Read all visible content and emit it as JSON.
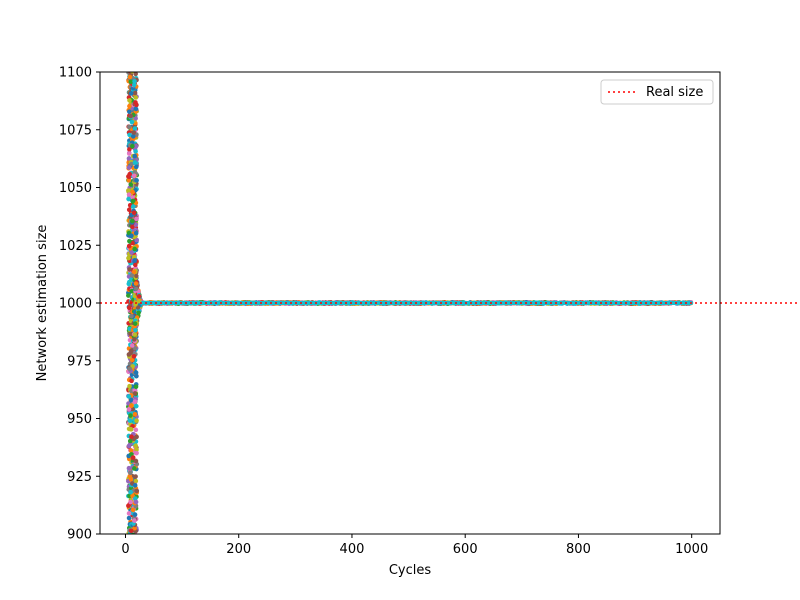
{
  "chart_data": {
    "type": "scatter",
    "title": "",
    "xlabel": "Cycles",
    "ylabel": "Network estimation size",
    "xlim": [
      -45,
      1050
    ],
    "ylim": [
      900,
      1100
    ],
    "xticks": [
      0,
      200,
      400,
      600,
      800,
      1000
    ],
    "yticks": [
      900,
      925,
      950,
      975,
      1000,
      1025,
      1050,
      1075,
      1100
    ],
    "grid": false,
    "legend": {
      "placement": "top-right",
      "entries": [
        {
          "label": "Real size",
          "style": "dotted",
          "color": "#ff0000"
        }
      ]
    },
    "reference_line": {
      "name": "Real size",
      "y": 1000,
      "color": "#ff0000",
      "style": "dotted"
    },
    "series_style": {
      "colors": [
        "#1f77b4",
        "#ff7f0e",
        "#2ca02c",
        "#d62728",
        "#9467bd",
        "#8c564b",
        "#e377c2",
        "#7f7f7f",
        "#bcbd22",
        "#17becf"
      ],
      "marker": "circle",
      "cycles": [
        0,
        1000
      ],
      "initial_cycles": [
        5,
        20
      ],
      "initial_range": [
        900,
        1100
      ],
      "converged_by_cycle": 30,
      "converged_value": 1000
    }
  }
}
